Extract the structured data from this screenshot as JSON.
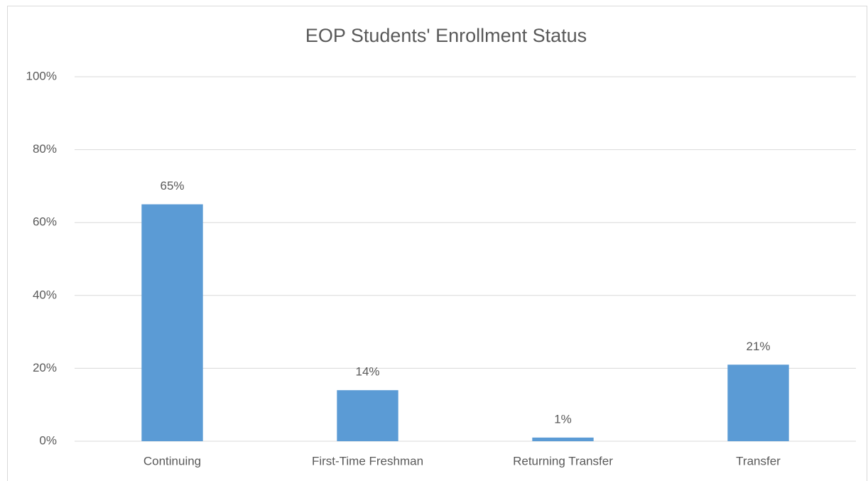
{
  "chart_data": {
    "type": "bar",
    "title": "EOP Students' Enrollment Status",
    "categories": [
      "Continuing",
      "First-Time Freshman",
      "Returning Transfer",
      "Transfer"
    ],
    "values": [
      65,
      14,
      1,
      21
    ],
    "value_labels": [
      "65%",
      "14%",
      "1%",
      "21%"
    ],
    "color": "#5b9bd5",
    "ylim": [
      0,
      100
    ],
    "yticks": [
      {
        "value": 0,
        "label": "0%"
      },
      {
        "value": 20,
        "label": "20%"
      },
      {
        "value": 40,
        "label": "40%"
      },
      {
        "value": 60,
        "label": "60%"
      },
      {
        "value": 80,
        "label": "80%"
      },
      {
        "value": 100,
        "label": "100%"
      }
    ],
    "grid": true
  }
}
